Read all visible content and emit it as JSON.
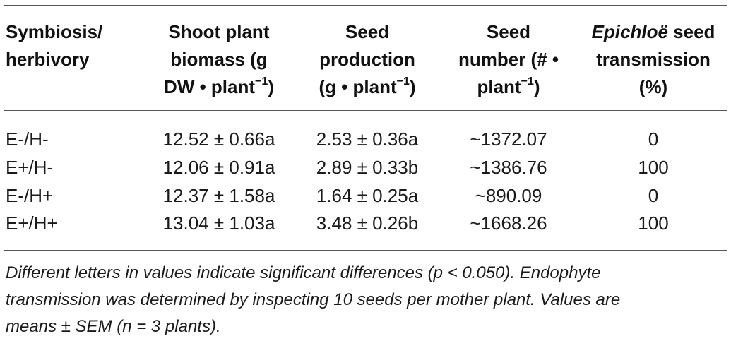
{
  "table": {
    "headers": [
      {
        "lines": [
          "Symbiosis/",
          "herbivory"
        ]
      },
      {
        "lines": [
          "Shoot plant",
          "biomass (g",
          "DW • plant"
        ],
        "sup": "−1",
        "close": ")"
      },
      {
        "lines": [
          "Seed",
          "production",
          "(g • plant"
        ],
        "sup": "−1",
        "close": ")"
      },
      {
        "lines": [
          "Seed",
          "number (# •",
          "plant"
        ],
        "sup": "−1",
        "close": ")"
      },
      {
        "italic_word": "Epichloë",
        "lines": [
          " seed",
          "transmission",
          "(%)"
        ]
      }
    ],
    "rows": [
      {
        "treatment": "E-/H-",
        "biomass": "12.52 ± 0.66a",
        "seed_production": "2.53 ± 0.36a",
        "seed_number": "~1372.07",
        "transmission": "0"
      },
      {
        "treatment": "E+/H-",
        "biomass": "12.06 ± 0.91a",
        "seed_production": "2.89 ± 0.33b",
        "seed_number": "~1386.76",
        "transmission": "100"
      },
      {
        "treatment": "E-/H+",
        "biomass": "12.37 ± 1.58a",
        "seed_production": "1.64 ± 0.25a",
        "seed_number": "~890.09",
        "transmission": "0"
      },
      {
        "treatment": "E+/H+",
        "biomass": "13.04 ± 1.03a",
        "seed_production": "3.48 ± 0.26b",
        "seed_number": "~1668.26",
        "transmission": "100"
      }
    ]
  },
  "footnote": {
    "lines": [
      "Different letters in values indicate significant differences (p < 0.050). Endophyte",
      "transmission was determined by inspecting 10 seeds per mother plant. Values are",
      "means ± SEM (n = 3 plants)."
    ]
  }
}
